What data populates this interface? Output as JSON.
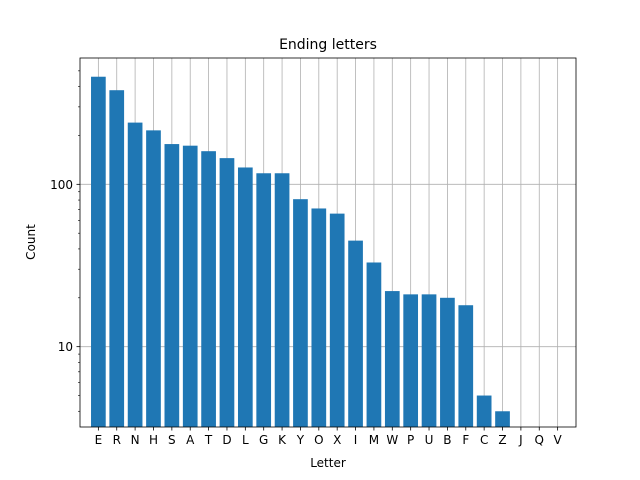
{
  "chart_data": {
    "type": "bar",
    "title": "Ending letters",
    "xlabel": "Letter",
    "ylabel": "Count",
    "yscale": "log",
    "ylim": [
      3.2,
      600
    ],
    "yticks": [
      10,
      100
    ],
    "ytick_labels": [
      "10",
      "100"
    ],
    "grid": true,
    "categories": [
      "E",
      "R",
      "N",
      "H",
      "S",
      "A",
      "T",
      "D",
      "L",
      "G",
      "K",
      "Y",
      "O",
      "X",
      "I",
      "M",
      "W",
      "P",
      "U",
      "B",
      "F",
      "C",
      "Z",
      "J",
      "Q",
      "V"
    ],
    "values": [
      460,
      380,
      240,
      215,
      177,
      173,
      160,
      145,
      127,
      117,
      117,
      81,
      71,
      66,
      45,
      33,
      22,
      21,
      21,
      20,
      18,
      5,
      4,
      0,
      0,
      0
    ],
    "colors": {
      "bar": "#1f77b4",
      "grid": "#b0b0b0",
      "axis": "#000000"
    }
  }
}
